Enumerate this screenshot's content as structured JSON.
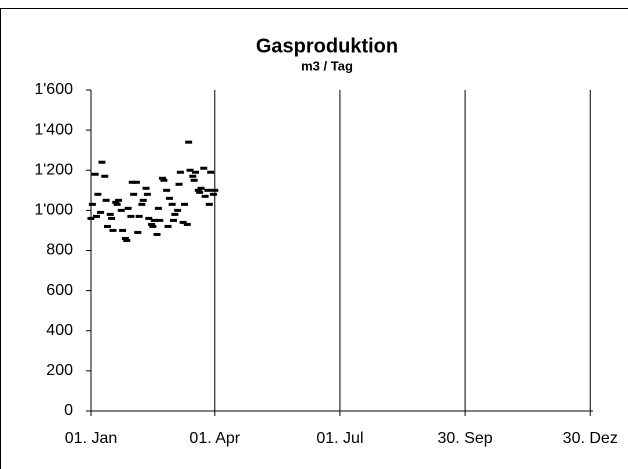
{
  "chart_data": {
    "type": "scatter",
    "title": "Gasproduktion",
    "subtitle": "m3 / Tag",
    "x": [
      0,
      1,
      3,
      4,
      5,
      7,
      8,
      10,
      11,
      12,
      14,
      15,
      16,
      18,
      19,
      20,
      22,
      23,
      25,
      26,
      27,
      29,
      30,
      31,
      33,
      34,
      35,
      37,
      38,
      40,
      41,
      42,
      44,
      45,
      46,
      48,
      49,
      50,
      52,
      53,
      55,
      56,
      57,
      59,
      60,
      61,
      63,
      64,
      65,
      67,
      68,
      70,
      71,
      72,
      74,
      75,
      76,
      78,
      79,
      80,
      82,
      83,
      85,
      86,
      87,
      89,
      90
    ],
    "values": [
      960,
      1030,
      1180,
      970,
      1080,
      990,
      1240,
      1170,
      1050,
      920,
      980,
      960,
      900,
      1040,
      1030,
      1050,
      1000,
      900,
      860,
      850,
      1010,
      970,
      1140,
      1080,
      1140,
      890,
      970,
      1030,
      1050,
      1110,
      1080,
      960,
      930,
      920,
      950,
      880,
      1010,
      950,
      1160,
      1150,
      1100,
      920,
      1060,
      1030,
      950,
      980,
      1000,
      1130,
      1190,
      940,
      1030,
      930,
      1340,
      1200,
      1170,
      1150,
      1190,
      1100,
      1090,
      1110,
      1210,
      1070,
      1100,
      1030,
      1190,
      1080,
      1100
    ],
    "color": "#000000",
    "xlim": [
      0,
      365
    ],
    "xticks": [
      {
        "value": 0,
        "label": "01. Jan"
      },
      {
        "value": 90,
        "label": "01. Apr"
      },
      {
        "value": 181,
        "label": "01. Jul"
      },
      {
        "value": 272,
        "label": "30. Sep"
      },
      {
        "value": 363,
        "label": "30. Dez"
      }
    ],
    "ylim": [
      0,
      1600
    ],
    "yticks": [
      0,
      200,
      400,
      600,
      800,
      {
        "value": 1000,
        "label": "1'000"
      },
      {
        "value": 1200,
        "label": "1'200"
      },
      {
        "value": 1400,
        "label": "1'400"
      },
      {
        "value": 1600,
        "label": "1'600"
      }
    ],
    "grid": "x"
  }
}
